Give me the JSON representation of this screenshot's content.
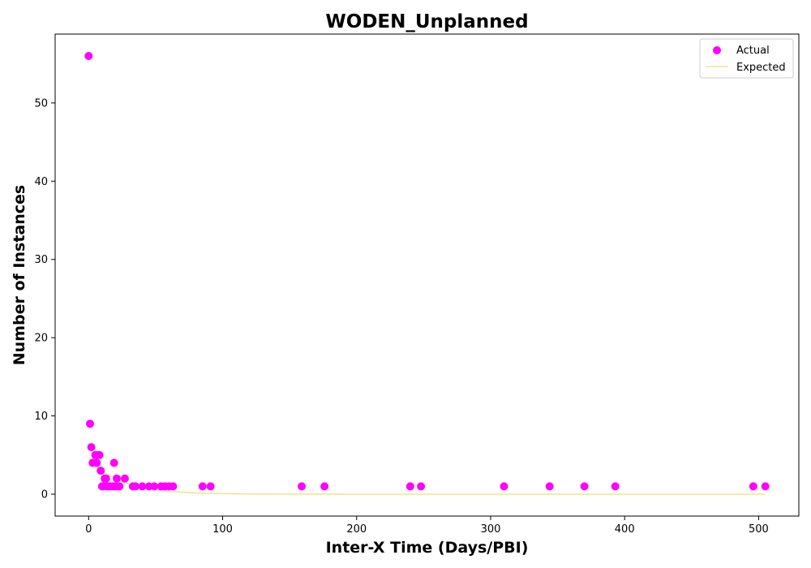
{
  "chart_data": {
    "type": "scatter",
    "title": "WODEN_Unplanned",
    "xlabel": "Inter-X Time (Days/PBI)",
    "ylabel": "Number of Instances",
    "xlim": [
      -25,
      530
    ],
    "ylim": [
      -2.8,
      58.8
    ],
    "xticks": [
      0,
      100,
      200,
      300,
      400,
      500
    ],
    "yticks": [
      0,
      10,
      20,
      30,
      40,
      50
    ],
    "grid": false,
    "legend_position": "top-right",
    "series": [
      {
        "name": "Actual",
        "kind": "scatter",
        "color": "#ff00ff",
        "points": [
          [
            0,
            56
          ],
          [
            1,
            9
          ],
          [
            2,
            6
          ],
          [
            3,
            4
          ],
          [
            5,
            5
          ],
          [
            6,
            4
          ],
          [
            7,
            5
          ],
          [
            8,
            5
          ],
          [
            9,
            3
          ],
          [
            10,
            1
          ],
          [
            11,
            1
          ],
          [
            12,
            2
          ],
          [
            13,
            2
          ],
          [
            14,
            1
          ],
          [
            16,
            1
          ],
          [
            18,
            1
          ],
          [
            19,
            4
          ],
          [
            20,
            1
          ],
          [
            21,
            2
          ],
          [
            23,
            1
          ],
          [
            27,
            2
          ],
          [
            33,
            1
          ],
          [
            35,
            1
          ],
          [
            40,
            1
          ],
          [
            45,
            1
          ],
          [
            49,
            1
          ],
          [
            54,
            1
          ],
          [
            57,
            1
          ],
          [
            60,
            1
          ],
          [
            63,
            1
          ],
          [
            85,
            1
          ],
          [
            91,
            1
          ],
          [
            159,
            1
          ],
          [
            176,
            1
          ],
          [
            240,
            1
          ],
          [
            248,
            1
          ],
          [
            310,
            1
          ],
          [
            344,
            1
          ],
          [
            370,
            1
          ],
          [
            393,
            1
          ],
          [
            496,
            1
          ],
          [
            505,
            1
          ]
        ]
      },
      {
        "name": "Expected",
        "kind": "line",
        "color": "#f0e68c",
        "amplitude": 4.6,
        "decay": 0.042,
        "x_start": 0,
        "x_end": 505
      }
    ]
  }
}
